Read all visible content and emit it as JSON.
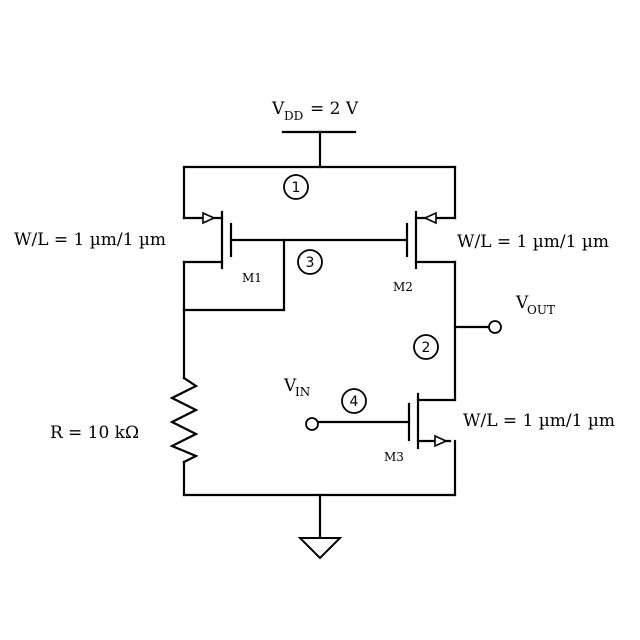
{
  "supply": {
    "label": "V",
    "sub": "DD",
    "value": "= 2 V"
  },
  "transistors": {
    "m1": {
      "name": "M1",
      "size": "W/L = 1 µm/1 µm"
    },
    "m2": {
      "name": "M2",
      "size": "W/L = 1 µm/1 µm"
    },
    "m3": {
      "name": "M3",
      "size": "W/L = 1 µm/1 µm"
    }
  },
  "resistor": {
    "label": "R",
    "value": "= 10 kΩ"
  },
  "terminals": {
    "vin": "V",
    "vin_sub": "IN",
    "vout": "V",
    "vout_sub": "OUT"
  },
  "nodes": [
    "1",
    "2",
    "3",
    "4"
  ],
  "icons": [
    "ground-icon",
    "resistor-icon",
    "pmos-icon",
    "nmos-icon"
  ]
}
